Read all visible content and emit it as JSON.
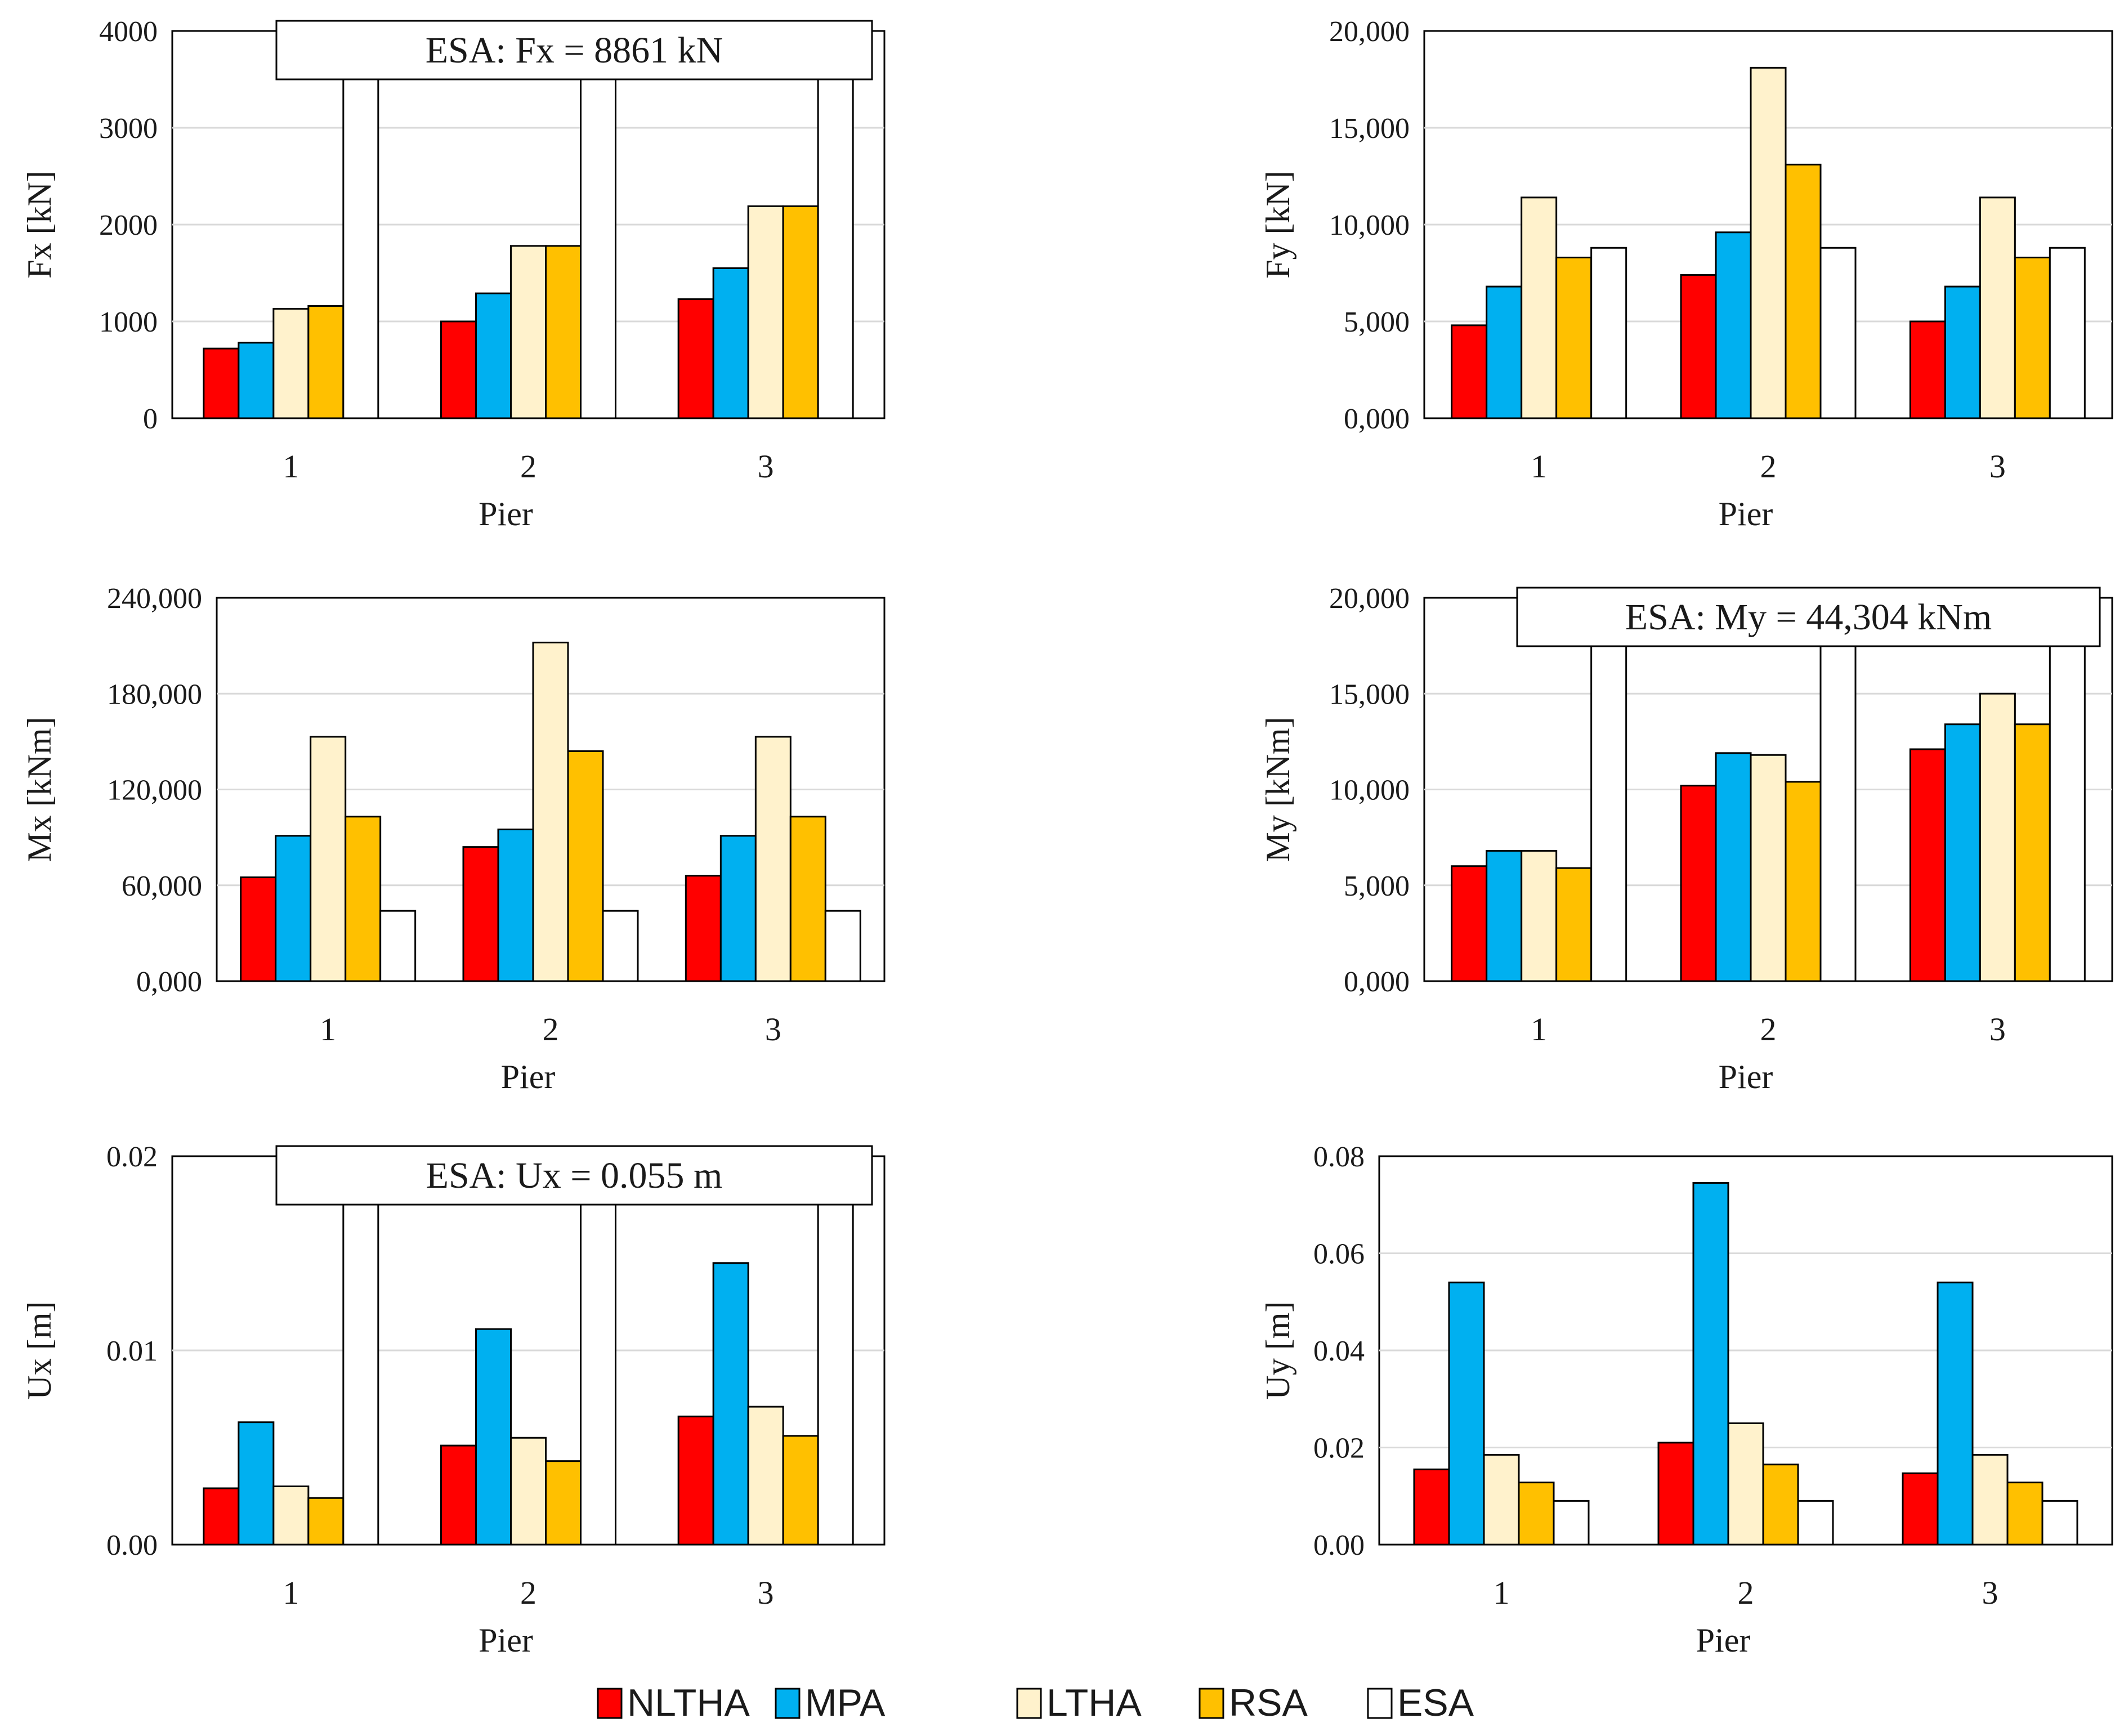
{
  "colors": {
    "NLTHA": "#ff0000",
    "MPA": "#00b0f0",
    "LTHA": "#fff2cc",
    "RSA": "#ffc000",
    "ESA": "#ffffff"
  },
  "legend": [
    "NLTHA",
    "MPA",
    "LTHA",
    "RSA",
    "ESA"
  ],
  "chart_data": [
    {
      "id": "fx",
      "type": "bar",
      "categories": [
        "1",
        "2",
        "3"
      ],
      "series": [
        {
          "name": "NLTHA",
          "values": [
            720,
            1000,
            1230
          ]
        },
        {
          "name": "MPA",
          "values": [
            780,
            1290,
            1550
          ]
        },
        {
          "name": "LTHA",
          "values": [
            1130,
            1780,
            2190
          ]
        },
        {
          "name": "RSA",
          "values": [
            1160,
            1780,
            2190
          ]
        },
        {
          "name": "ESA",
          "values": [
            8861,
            8861,
            8861
          ]
        }
      ],
      "xlabel": "Pier",
      "ylabel": "Fx [kN]",
      "ylim": [
        0,
        4000
      ],
      "yticks": [
        "0",
        "1000",
        "2000",
        "3000",
        "4000"
      ],
      "annotation": "ESA:  Fx = 8861 kN"
    },
    {
      "id": "fy",
      "type": "bar",
      "categories": [
        "1",
        "2",
        "3"
      ],
      "series": [
        {
          "name": "NLTHA",
          "values": [
            4800,
            7400,
            5000
          ]
        },
        {
          "name": "MPA",
          "values": [
            6800,
            9600,
            6800
          ]
        },
        {
          "name": "LTHA",
          "values": [
            11400,
            18100,
            11400
          ]
        },
        {
          "name": "RSA",
          "values": [
            8300,
            13100,
            8300
          ]
        },
        {
          "name": "ESA",
          "values": [
            8800,
            8800,
            8800
          ]
        }
      ],
      "xlabel": "Pier",
      "ylabel": "Fy [kN]",
      "ylim": [
        0,
        20000
      ],
      "yticks": [
        "0,000",
        "5,000",
        "10,000",
        "15,000",
        "20,000"
      ],
      "annotation": ""
    },
    {
      "id": "mx",
      "type": "bar",
      "categories": [
        "1",
        "2",
        "3"
      ],
      "series": [
        {
          "name": "NLTHA",
          "values": [
            65000,
            84000,
            66000
          ]
        },
        {
          "name": "MPA",
          "values": [
            91000,
            95000,
            91000
          ]
        },
        {
          "name": "LTHA",
          "values": [
            153000,
            212000,
            153000
          ]
        },
        {
          "name": "RSA",
          "values": [
            103000,
            144000,
            103000
          ]
        },
        {
          "name": "ESA",
          "values": [
            44000,
            44000,
            44000
          ]
        }
      ],
      "xlabel": "Pier",
      "ylabel": "Mx [kNm]",
      "ylim": [
        0,
        240000
      ],
      "yticks": [
        "0,000",
        "60,000",
        "120,000",
        "180,000",
        "240,000"
      ],
      "annotation": ""
    },
    {
      "id": "my",
      "type": "bar",
      "categories": [
        "1",
        "2",
        "3"
      ],
      "series": [
        {
          "name": "NLTHA",
          "values": [
            6000,
            10200,
            12100
          ]
        },
        {
          "name": "MPA",
          "values": [
            6800,
            11900,
            13400
          ]
        },
        {
          "name": "LTHA",
          "values": [
            6800,
            11800,
            15000
          ]
        },
        {
          "name": "RSA",
          "values": [
            5900,
            10400,
            13400
          ]
        },
        {
          "name": "ESA",
          "values": [
            44304,
            44304,
            44304
          ]
        }
      ],
      "xlabel": "Pier",
      "ylabel": "My [kNm]",
      "ylim": [
        0,
        20000
      ],
      "yticks": [
        "0,000",
        "5,000",
        "10,000",
        "15,000",
        "20,000"
      ],
      "annotation": "ESA:  My = 44,304 kNm"
    },
    {
      "id": "ux",
      "type": "bar",
      "categories": [
        "1",
        "2",
        "3"
      ],
      "series": [
        {
          "name": "NLTHA",
          "values": [
            0.0029,
            0.0051,
            0.0066
          ]
        },
        {
          "name": "MPA",
          "values": [
            0.0063,
            0.0111,
            0.0145
          ]
        },
        {
          "name": "LTHA",
          "values": [
            0.003,
            0.0055,
            0.0071
          ]
        },
        {
          "name": "RSA",
          "values": [
            0.0024,
            0.0043,
            0.0056
          ]
        },
        {
          "name": "ESA",
          "values": [
            0.055,
            0.055,
            0.055
          ]
        }
      ],
      "xlabel": "Pier",
      "ylabel": "Ux [m]",
      "ylim": [
        0,
        0.02
      ],
      "yticks": [
        "0.00",
        "0.01",
        "0.02"
      ],
      "annotation": "ESA:  Ux = 0.055 m"
    },
    {
      "id": "uy",
      "type": "bar",
      "categories": [
        "1",
        "2",
        "3"
      ],
      "series": [
        {
          "name": "NLTHA",
          "values": [
            0.0155,
            0.021,
            0.0147
          ]
        },
        {
          "name": "MPA",
          "values": [
            0.054,
            0.0745,
            0.054
          ]
        },
        {
          "name": "LTHA",
          "values": [
            0.0185,
            0.025,
            0.0185
          ]
        },
        {
          "name": "RSA",
          "values": [
            0.0128,
            0.0165,
            0.0128
          ]
        },
        {
          "name": "ESA",
          "values": [
            0.009,
            0.009,
            0.009
          ]
        }
      ],
      "xlabel": "Pier",
      "ylabel": "Uy [m]",
      "ylim": [
        0,
        0.08
      ],
      "yticks": [
        "0.00",
        "0.02",
        "0.04",
        "0.06",
        "0.08"
      ],
      "annotation": ""
    }
  ]
}
